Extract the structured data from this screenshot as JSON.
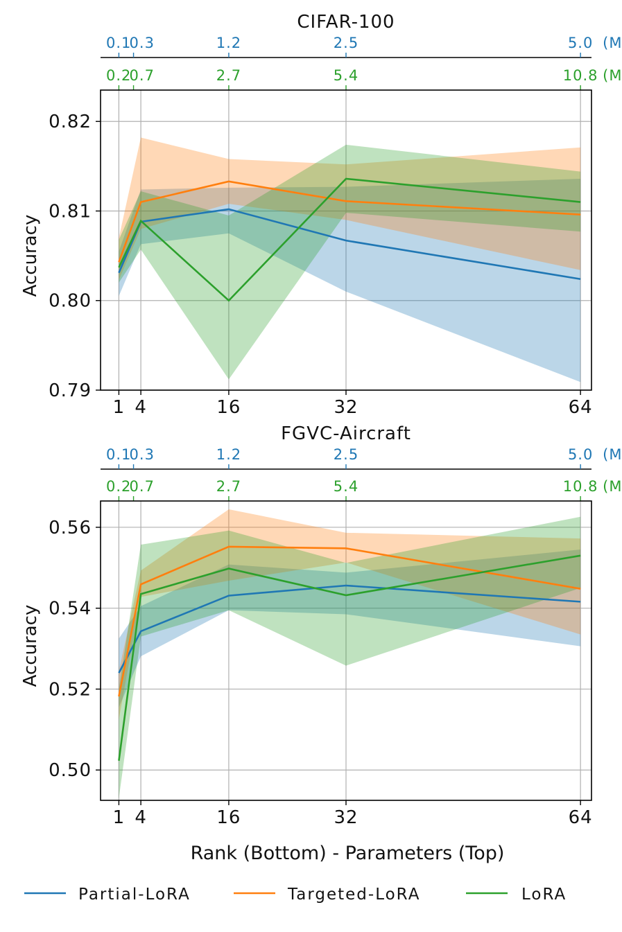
{
  "colors": {
    "partial": "#1f77b4",
    "targeted": "#ff7f0e",
    "lora": "#2ca02c",
    "grid": "#b0b0b0"
  },
  "xlabel": "Rank (Bottom) - Parameters (Top)",
  "legend": [
    {
      "name": "Partial-LoRA",
      "color": "#1f77b4"
    },
    {
      "name": "Targeted-LoRA",
      "color": "#ff7f0e"
    },
    {
      "name": "LoRA",
      "color": "#2ca02c"
    }
  ],
  "chart_data": [
    {
      "type": "line",
      "title": "CIFAR-100",
      "ylabel": "Accuracy",
      "x": [
        1,
        4,
        16,
        32,
        64
      ],
      "x_ticks": [
        "1",
        "4",
        "16",
        "32",
        "64"
      ],
      "xlim": [
        -1.5,
        65.5
      ],
      "ylim": [
        0.79,
        0.8235
      ],
      "y_ticks": [
        0.79,
        0.8,
        0.81,
        0.82
      ],
      "y_tick_labels": [
        "0.79",
        "0.80",
        "0.81",
        "0.82"
      ],
      "top_axis_blue": {
        "values": [
          1,
          3,
          16,
          32,
          64
        ],
        "labels": [
          "0.1",
          "0.3",
          "1.2",
          "2.5",
          "5.0"
        ],
        "unit": "(M)"
      },
      "top_axis_green": {
        "values": [
          1,
          3,
          16,
          32,
          64
        ],
        "labels": [
          "0.2",
          "0.7",
          "2.7",
          "5.4",
          "10.8"
        ],
        "unit": "(M)"
      },
      "series": [
        {
          "name": "Partial-LoRA",
          "color": "#1f77b4",
          "values": [
            0.8031,
            0.8088,
            0.8102,
            0.8067,
            0.8024
          ],
          "lower": [
            0.8005,
            0.8063,
            0.8075,
            0.801,
            0.7909
          ],
          "upper": [
            0.8055,
            0.8124,
            0.8126,
            0.8127,
            0.8136
          ]
        },
        {
          "name": "Targeted-LoRA",
          "color": "#ff7f0e",
          "values": [
            0.8043,
            0.811,
            0.8133,
            0.8111,
            0.8096
          ],
          "lower": [
            0.8023,
            0.808,
            0.8108,
            0.809,
            0.8034
          ],
          "upper": [
            0.807,
            0.8182,
            0.8158,
            0.8152,
            0.8171
          ]
        },
        {
          "name": "LoRA",
          "color": "#2ca02c",
          "values": [
            0.8037,
            0.8089,
            0.8,
            0.8136,
            0.811
          ],
          "lower": [
            0.802,
            0.8057,
            0.7912,
            0.8098,
            0.8077
          ],
          "upper": [
            0.8068,
            0.8122,
            0.8095,
            0.8174,
            0.8144
          ]
        }
      ]
    },
    {
      "type": "line",
      "title": "FGVC-Aircraft",
      "ylabel": "Accuracy",
      "x": [
        1,
        4,
        16,
        32,
        64
      ],
      "x_ticks": [
        "1",
        "4",
        "16",
        "32",
        "64"
      ],
      "xlim": [
        -1.5,
        65.5
      ],
      "ylim": [
        0.4925,
        0.5665
      ],
      "y_ticks": [
        0.5,
        0.52,
        0.54,
        0.56
      ],
      "y_tick_labels": [
        "0.50",
        "0.52",
        "0.54",
        "0.56"
      ],
      "top_axis_blue": {
        "values": [
          1,
          3,
          16,
          32,
          64
        ],
        "labels": [
          "0.1",
          "0.3",
          "1.2",
          "2.5",
          "5.0"
        ],
        "unit": "(M)"
      },
      "top_axis_green": {
        "values": [
          1,
          3,
          16,
          32,
          64
        ],
        "labels": [
          "0.2",
          "0.7",
          "2.7",
          "5.4",
          "10.8"
        ],
        "unit": "(M)"
      },
      "series": [
        {
          "name": "Partial-LoRA",
          "color": "#1f77b4",
          "values": [
            0.524,
            0.5343,
            0.5431,
            0.5456,
            0.5416
          ],
          "lower": [
            0.5155,
            0.5281,
            0.5395,
            0.5385,
            0.5306
          ],
          "upper": [
            0.5325,
            0.5405,
            0.5508,
            0.5488,
            0.5545
          ]
        },
        {
          "name": "Targeted-LoRA",
          "color": "#ff7f0e",
          "values": [
            0.5182,
            0.5459,
            0.5552,
            0.5548,
            0.5448
          ],
          "lower": [
            0.5125,
            0.5428,
            0.5468,
            0.5513,
            0.5335
          ]
        },
        {
          "name": "LoRA",
          "color": "#2ca02c",
          "values": [
            0.5023,
            0.5435,
            0.5498,
            0.5432,
            0.553
          ],
          "lower": [
            0.493,
            0.533,
            0.5395,
            0.5258,
            0.545
          ],
          "upper": [
            0.52,
            0.5557,
            0.5592,
            0.5512,
            0.5626
          ]
        }
      ]
    }
  ]
}
